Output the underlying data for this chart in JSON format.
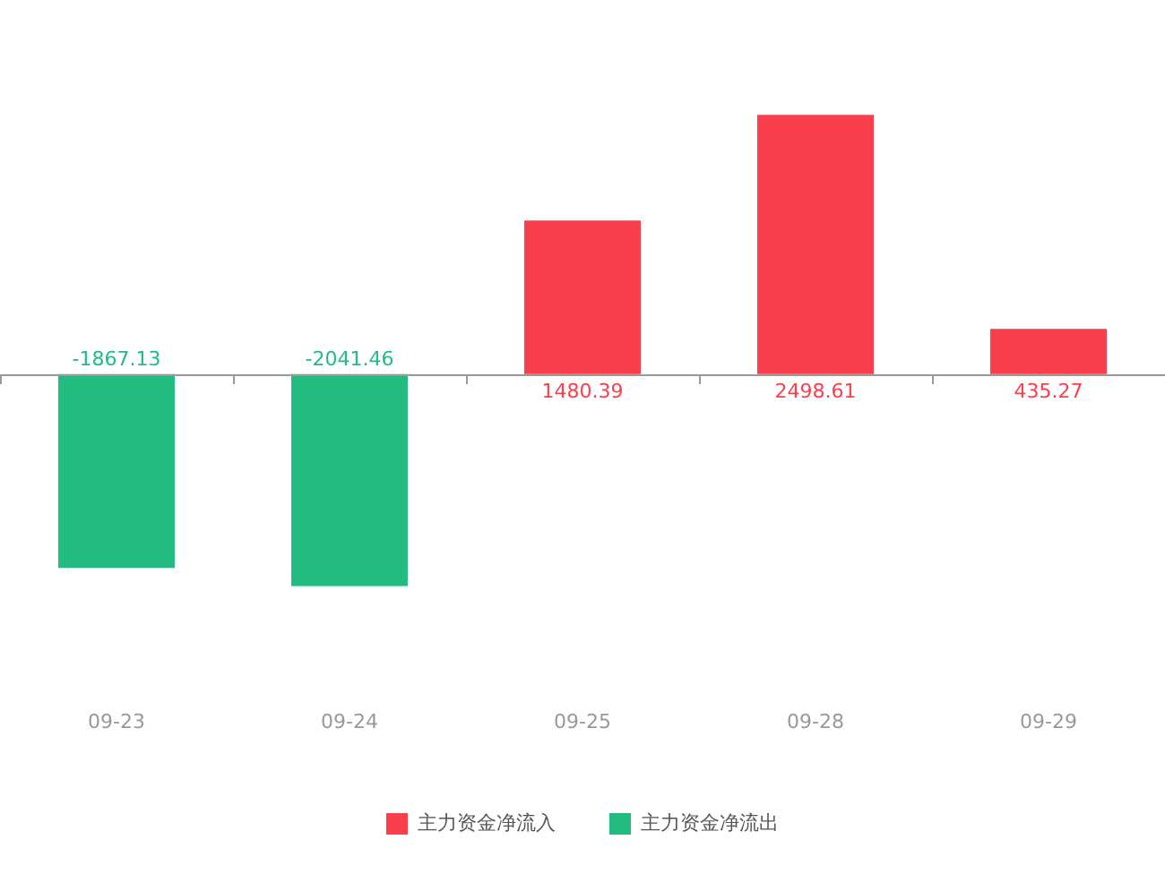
{
  "chart_data": {
    "type": "bar",
    "categories": [
      "09-23",
      "09-24",
      "09-25",
      "09-28",
      "09-29"
    ],
    "series": [
      {
        "name": "主力资金净流入",
        "color": "#f93e4c",
        "values": [
          null,
          null,
          1480.39,
          2498.61,
          435.27
        ]
      },
      {
        "name": "主力资金净流出",
        "color": "#22bb80",
        "values": [
          -1867.13,
          -2041.46,
          null,
          null,
          null
        ]
      }
    ],
    "data_labels": true,
    "legend": "bottom",
    "grid": false
  }
}
